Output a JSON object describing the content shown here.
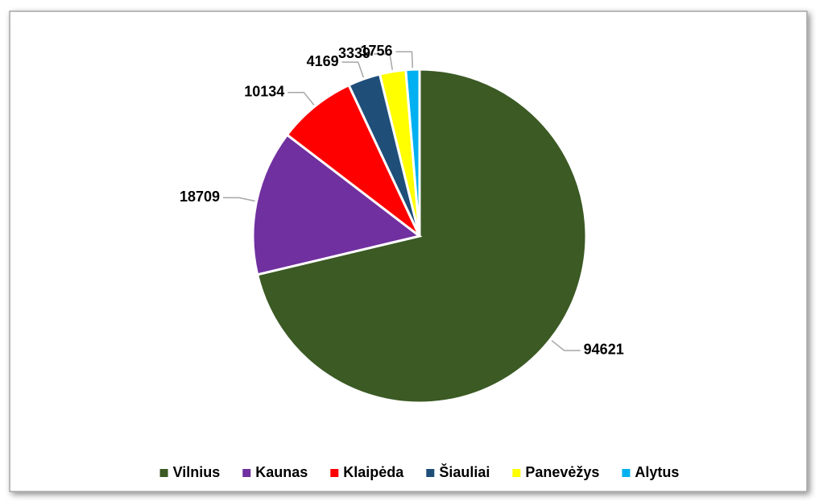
{
  "chart_data": {
    "type": "pie",
    "categories": [
      "Vilnius",
      "Kaunas",
      "Klaipėda",
      "Šiauliai",
      "Panevėžys",
      "Alytus"
    ],
    "values": [
      94621,
      18709,
      10134,
      4169,
      3339,
      1756
    ],
    "colors": [
      "#3b5a24",
      "#7030a0",
      "#ff0000",
      "#1f4e79",
      "#ffff00",
      "#00b0f0"
    ],
    "legend": "bottom"
  }
}
